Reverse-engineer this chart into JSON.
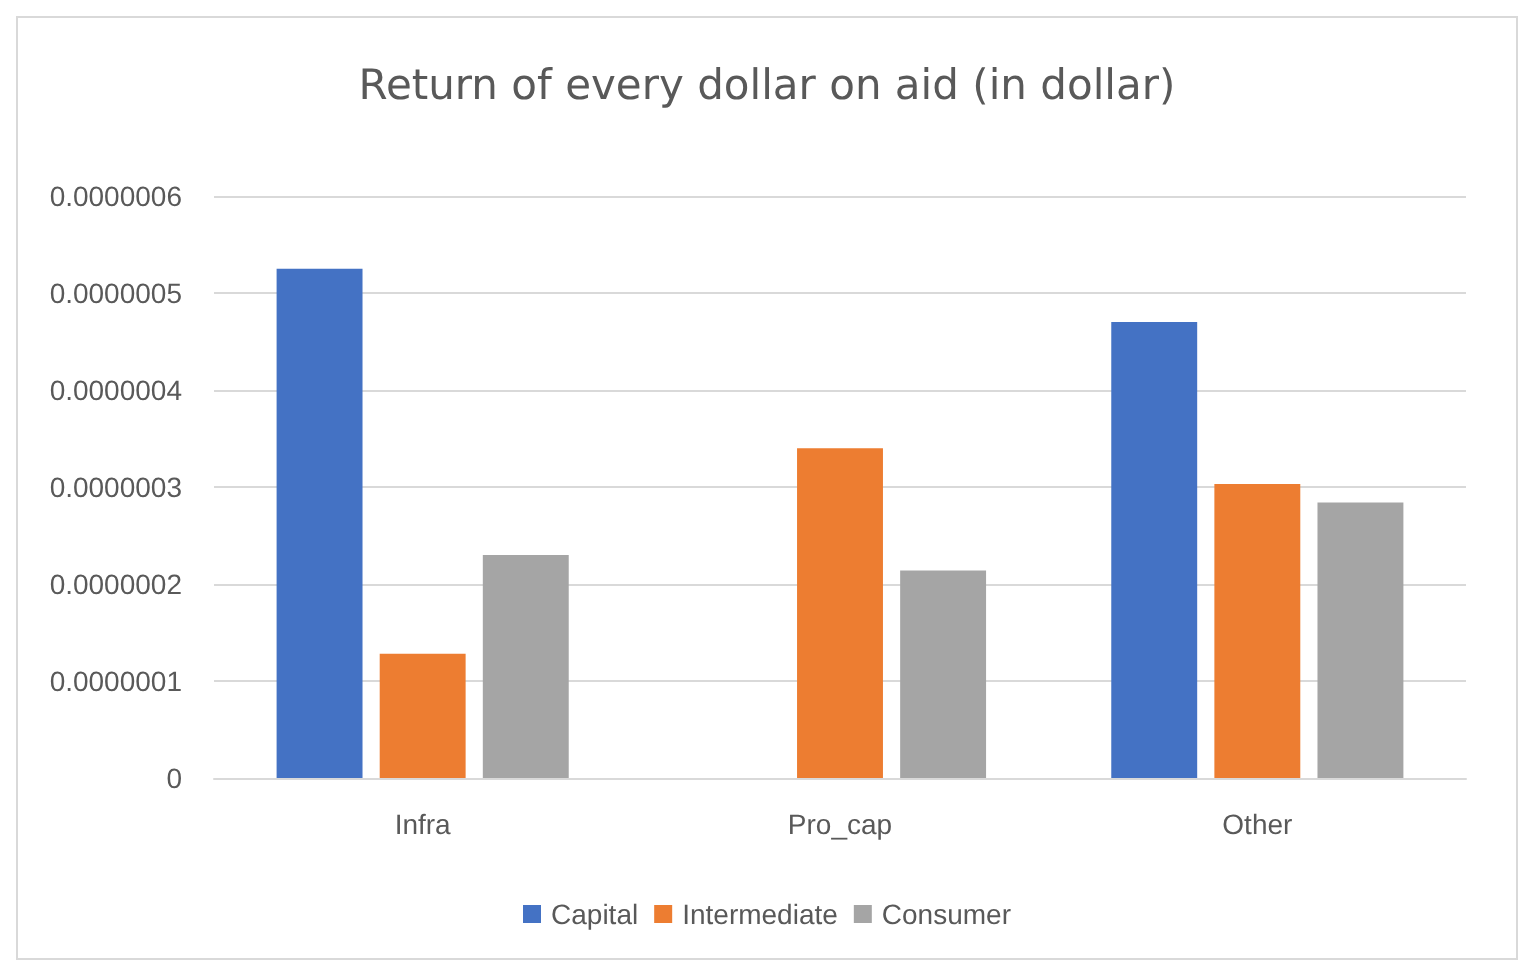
{
  "chart_data": {
    "type": "bar",
    "title": "Return of every dollar on aid (in dollar)",
    "categories": [
      "Infra",
      "Pro_cap",
      "Other"
    ],
    "series": [
      {
        "name": "Capital",
        "color": "#4472c4",
        "values": [
          5.25e-07,
          0,
          4.7e-07
        ]
      },
      {
        "name": "Intermediate",
        "color": "#ed7d31",
        "values": [
          1.28e-07,
          3.4e-07,
          3.03e-07
        ]
      },
      {
        "name": "Consumer",
        "color": "#a5a5a5",
        "values": [
          2.3e-07,
          2.14e-07,
          2.84e-07
        ]
      }
    ],
    "ylim": [
      0,
      6e-07
    ],
    "yticks": [
      {
        "value": 0,
        "label": "0"
      },
      {
        "value": 1e-07,
        "label": "0.0000001"
      },
      {
        "value": 2e-07,
        "label": "0.0000002"
      },
      {
        "value": 3e-07,
        "label": "0.0000003"
      },
      {
        "value": 4e-07,
        "label": "0.0000004"
      },
      {
        "value": 5e-07,
        "label": "0.0000005"
      },
      {
        "value": 6e-07,
        "label": "0.0000006"
      }
    ],
    "grid": "y",
    "legend": "bottom"
  }
}
